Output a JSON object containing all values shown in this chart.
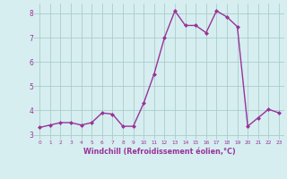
{
  "x": [
    0,
    1,
    2,
    3,
    4,
    5,
    6,
    7,
    8,
    9,
    10,
    11,
    12,
    13,
    14,
    15,
    16,
    17,
    18,
    19,
    20,
    21,
    22,
    23
  ],
  "y": [
    3.3,
    3.4,
    3.5,
    3.5,
    3.4,
    3.5,
    3.9,
    3.85,
    3.35,
    3.35,
    4.3,
    5.5,
    7.0,
    8.1,
    7.5,
    7.5,
    7.2,
    8.1,
    7.85,
    7.45,
    3.35,
    3.7,
    4.05,
    3.9
  ],
  "line_color": "#993399",
  "marker": "D",
  "marker_size": 2.0,
  "bg_color": "#d6eef0",
  "grid_color": "#aacccc",
  "xlabel": "Windchill (Refroidissement éolien,°C)",
  "xlabel_color": "#993399",
  "tick_color": "#993399",
  "ylim": [
    2.8,
    8.4
  ],
  "xlim": [
    -0.5,
    23.5
  ],
  "yticks": [
    3,
    4,
    5,
    6,
    7,
    8
  ],
  "xticks": [
    0,
    1,
    2,
    3,
    4,
    5,
    6,
    7,
    8,
    9,
    10,
    11,
    12,
    13,
    14,
    15,
    16,
    17,
    18,
    19,
    20,
    21,
    22,
    23
  ],
  "linewidth": 1.0,
  "figsize": [
    3.2,
    2.0
  ],
  "dpi": 100
}
